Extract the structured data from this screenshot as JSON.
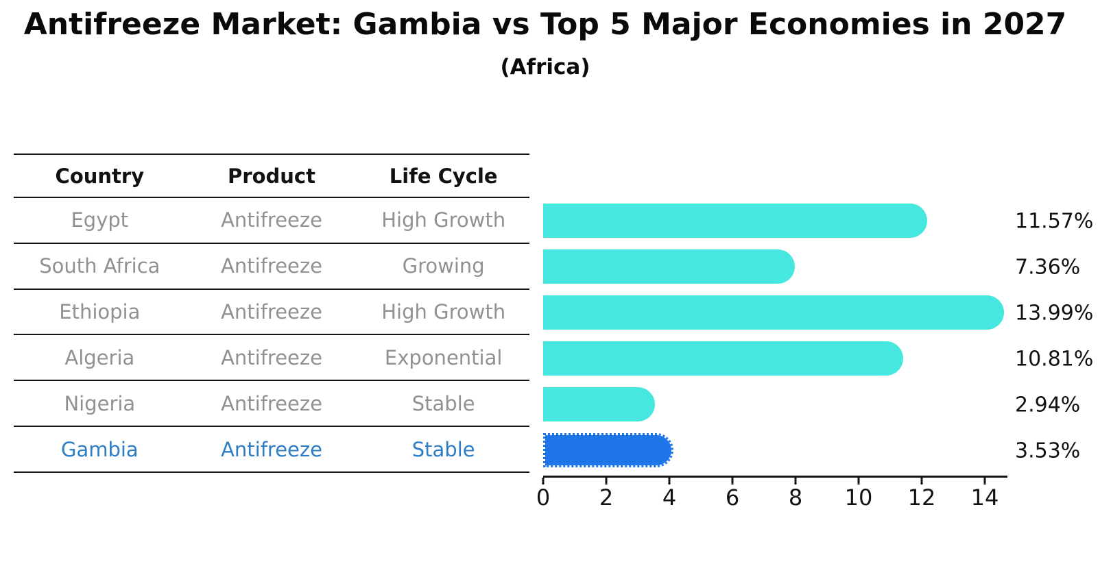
{
  "title": "Antifreeze Market: Gambia vs Top 5 Major Economies in 2027",
  "subtitle": "(Africa)",
  "table": {
    "headers": [
      "Country",
      "Product",
      "Life Cycle"
    ],
    "rows": [
      {
        "country": "Egypt",
        "product": "Antifreeze",
        "life_cycle": "High Growth",
        "highlight": false
      },
      {
        "country": "South Africa",
        "product": "Antifreeze",
        "life_cycle": "Growing",
        "highlight": false
      },
      {
        "country": "Ethiopia",
        "product": "Antifreeze",
        "life_cycle": "High Growth",
        "highlight": false
      },
      {
        "country": "Algeria",
        "product": "Antifreeze",
        "life_cycle": "Exponential",
        "highlight": false
      },
      {
        "country": "Nigeria",
        "product": "Antifreeze",
        "life_cycle": "Stable",
        "highlight": false
      },
      {
        "country": "Gambia",
        "product": "Antifreeze",
        "life_cycle": "Stable",
        "highlight": true
      }
    ]
  },
  "chart_data": {
    "type": "bar",
    "orientation": "horizontal",
    "categories": [
      "Egypt",
      "South Africa",
      "Ethiopia",
      "Algeria",
      "Nigeria",
      "Gambia"
    ],
    "values": [
      11.57,
      7.36,
      13.99,
      10.81,
      2.94,
      3.53
    ],
    "value_labels": [
      "11.57%",
      "7.36%",
      "13.99%",
      "10.81%",
      "2.94%",
      "3.53%"
    ],
    "x_ticks": [
      0,
      2,
      4,
      6,
      8,
      10,
      12,
      14
    ],
    "xlim": [
      0,
      14.7
    ],
    "xlabel": "",
    "ylabel": "",
    "grid": false,
    "legend": false,
    "highlight_category": "Gambia",
    "bar_color": "#45e7df",
    "highlight_bar_color": "#1e76e8",
    "highlight_text_color": "#2e7dc7"
  },
  "colors": {
    "background": "#ffffff",
    "axis": "#141414",
    "table_text": "#919191",
    "heading_text": "#0a0a0a"
  }
}
